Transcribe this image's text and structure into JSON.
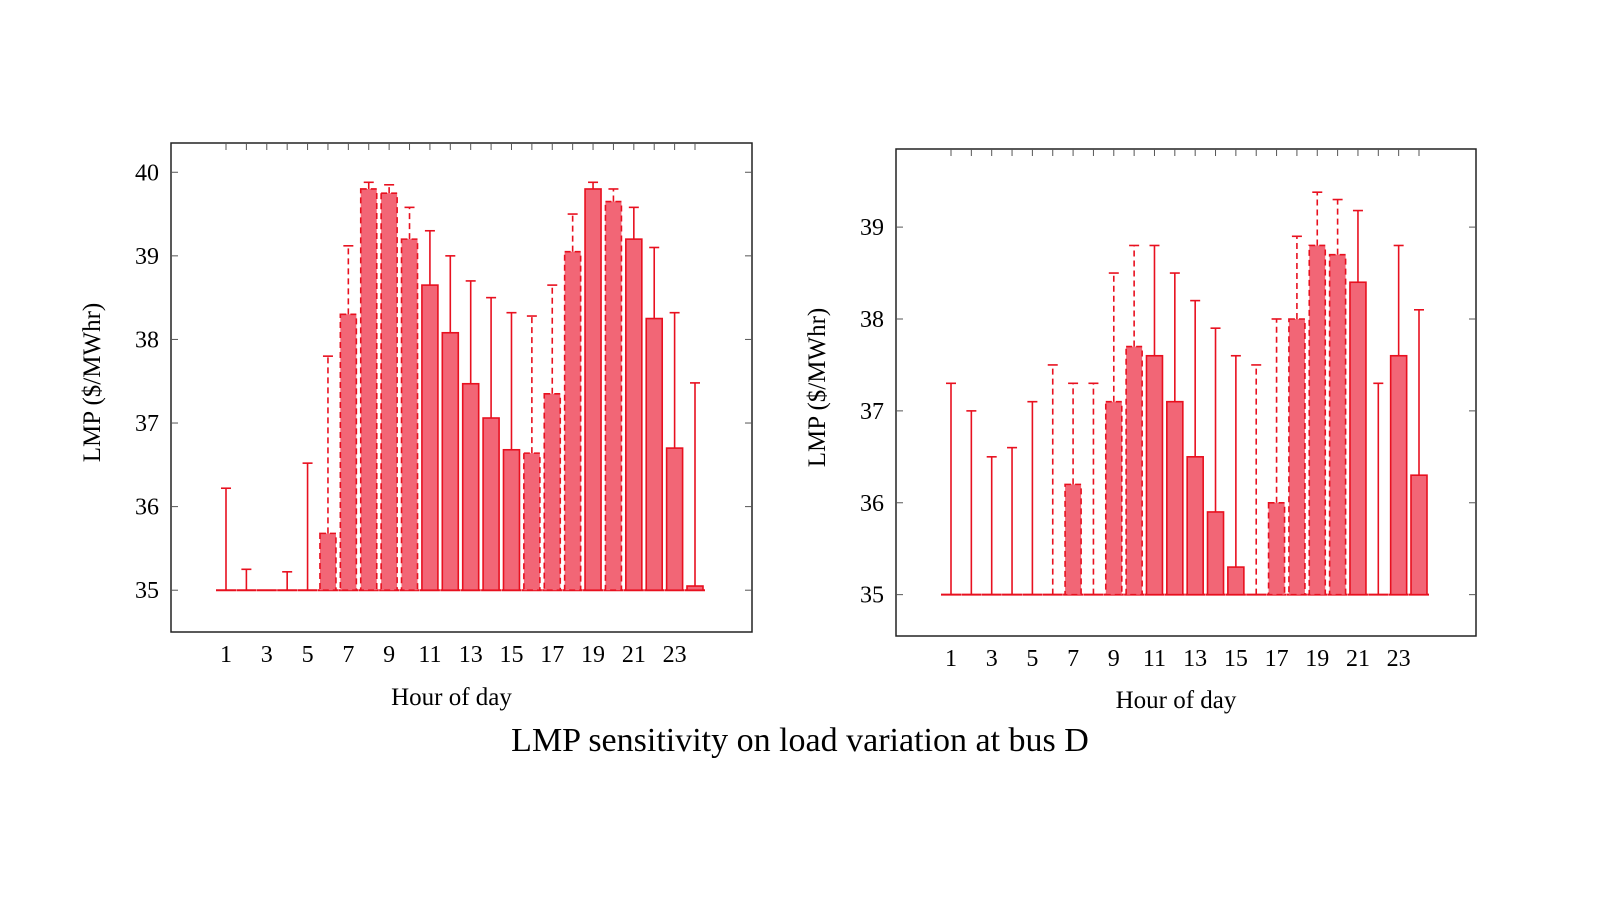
{
  "caption": "LMP sensitivity on load variation at bus D",
  "colors": {
    "bar_fill": "#f26676",
    "bar_stroke": "#e8101f",
    "frame": "#222222"
  },
  "chart_data": [
    {
      "type": "bar",
      "title": "",
      "xlabel": "Hour of day",
      "ylabel": "LMP ($/MWhr)",
      "ylim": [
        34.5,
        40.35
      ],
      "yticks": [
        35,
        36,
        37,
        38,
        39,
        40
      ],
      "xtick_labels": [
        "1",
        "3",
        "5",
        "7",
        "9",
        "11",
        "13",
        "15",
        "17",
        "19",
        "21",
        "23"
      ],
      "x": [
        1,
        2,
        3,
        4,
        5,
        6,
        7,
        8,
        9,
        10,
        11,
        12,
        13,
        14,
        15,
        16,
        17,
        18,
        19,
        20,
        21,
        22,
        23,
        24
      ],
      "values": [
        35,
        35,
        35,
        35,
        35,
        35.68,
        38.3,
        39.8,
        39.75,
        39.2,
        38.65,
        38.08,
        37.47,
        37.06,
        36.68,
        36.64,
        37.35,
        39.05,
        39.8,
        39.65,
        39.2,
        38.25,
        36.7,
        35.05
      ],
      "error_upper": [
        36.22,
        35.25,
        35,
        35.22,
        36.52,
        37.8,
        39.12,
        39.88,
        39.85,
        39.58,
        39.3,
        39.0,
        38.7,
        38.5,
        38.32,
        38.28,
        38.65,
        39.5,
        39.88,
        39.8,
        39.58,
        39.1,
        38.32,
        37.48
      ],
      "dashed": [
        false,
        false,
        false,
        false,
        false,
        true,
        true,
        true,
        true,
        true,
        false,
        false,
        false,
        false,
        false,
        true,
        true,
        true,
        false,
        true,
        false,
        false,
        false,
        false
      ]
    },
    {
      "type": "bar",
      "title": "",
      "xlabel": "Hour of day",
      "ylabel": "LMP ($/MWhr)",
      "ylim": [
        34.55,
        39.85
      ],
      "yticks": [
        35,
        36,
        37,
        38,
        39
      ],
      "xtick_labels": [
        "1",
        "3",
        "5",
        "7",
        "9",
        "11",
        "13",
        "15",
        "17",
        "19",
        "21",
        "23"
      ],
      "x": [
        1,
        2,
        3,
        4,
        5,
        6,
        7,
        8,
        9,
        10,
        11,
        12,
        13,
        14,
        15,
        16,
        17,
        18,
        19,
        20,
        21,
        22,
        23,
        24
      ],
      "values": [
        35,
        35,
        35,
        35,
        35,
        35,
        36.2,
        35,
        37.1,
        37.7,
        37.6,
        37.1,
        36.5,
        35.9,
        35.3,
        35,
        36.0,
        38.0,
        38.8,
        38.7,
        38.4,
        35,
        37.6,
        36.3
      ],
      "error_upper": [
        37.3,
        37.0,
        36.5,
        36.6,
        37.1,
        37.5,
        37.3,
        37.3,
        38.5,
        38.8,
        38.8,
        38.5,
        38.2,
        37.9,
        37.6,
        37.5,
        38.0,
        38.9,
        39.38,
        39.3,
        39.18,
        37.3,
        38.8,
        38.1
      ],
      "dashed": [
        false,
        false,
        false,
        false,
        false,
        true,
        true,
        true,
        true,
        true,
        false,
        false,
        false,
        false,
        false,
        true,
        true,
        true,
        true,
        true,
        false,
        false,
        false,
        false
      ]
    }
  ]
}
